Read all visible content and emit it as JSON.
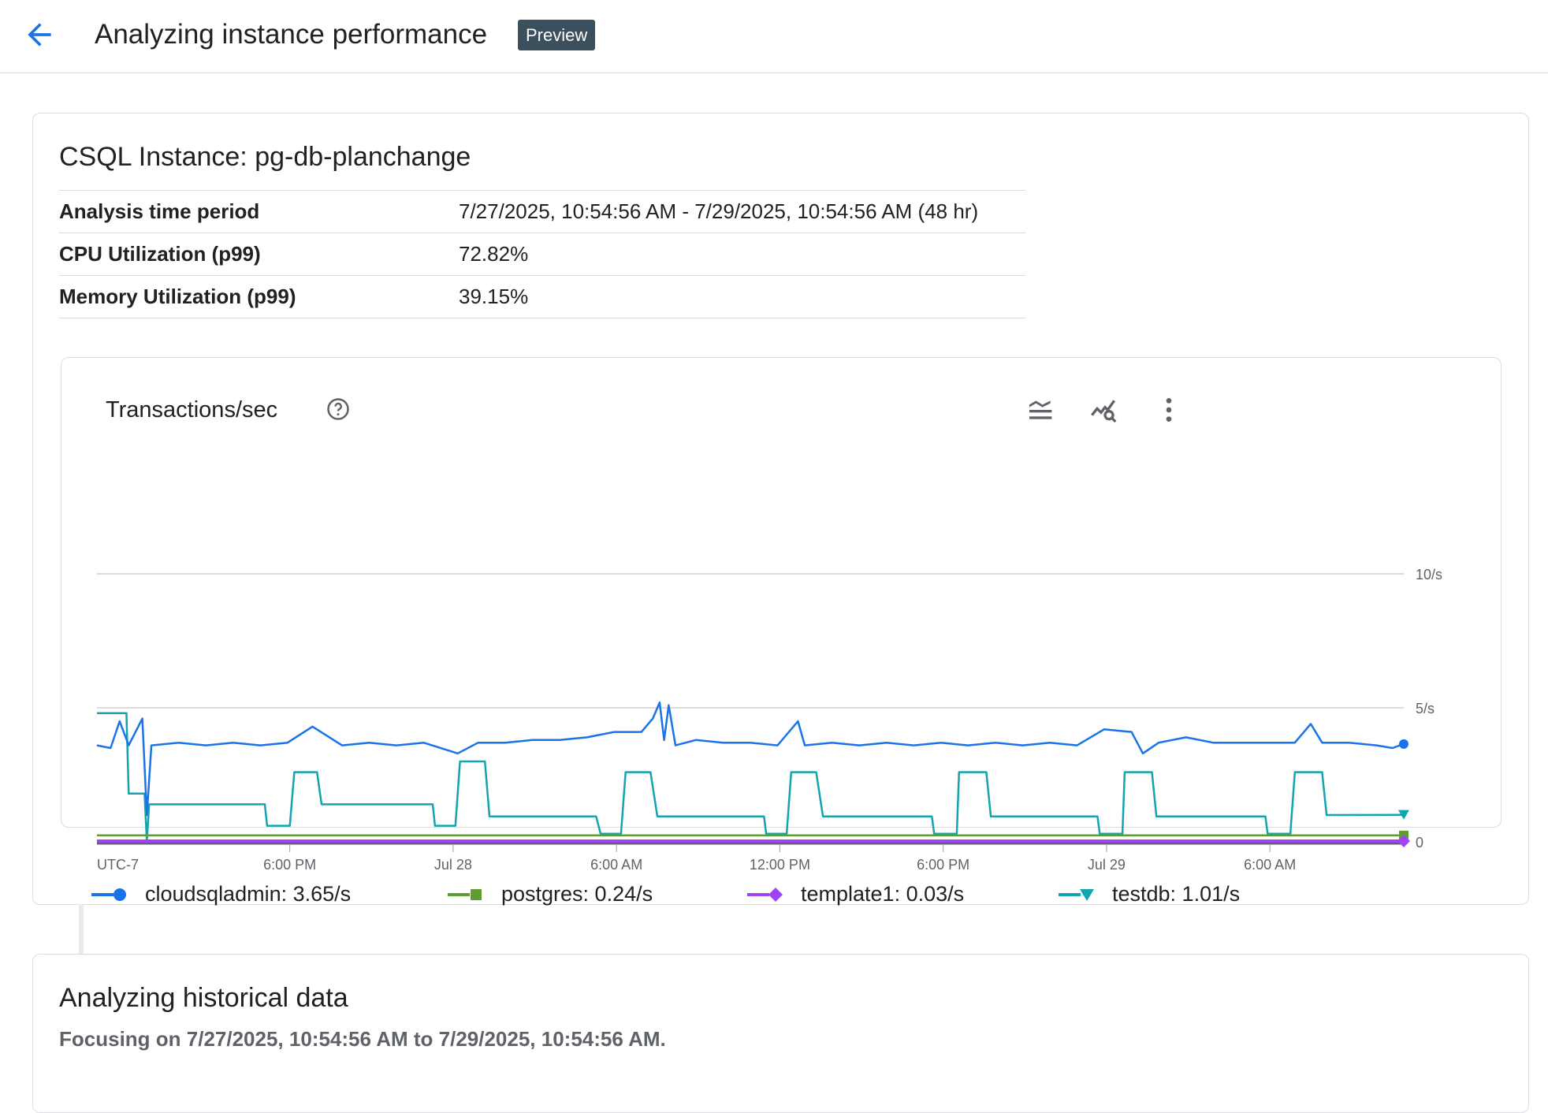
{
  "header": {
    "title": "Analyzing instance performance",
    "badge": "Preview",
    "back_icon": "arrow-back-icon"
  },
  "instance": {
    "title": "CSQL Instance: pg-db-planchange",
    "rows": [
      {
        "label": "Analysis time period",
        "value": "7/27/2025, 10:54:56 AM - 7/29/2025, 10:54:56 AM (48 hr)"
      },
      {
        "label": "CPU Utilization (p99)",
        "value": "72.82%"
      },
      {
        "label": "Memory Utilization (p99)",
        "value": "39.15%"
      }
    ]
  },
  "chart_card": {
    "title": "Transactions/sec",
    "icons": [
      "help-icon",
      "legend-toggle-icon",
      "explore-chart-icon",
      "more-vert-icon"
    ]
  },
  "chart_data": {
    "type": "line",
    "title": "Transactions/sec",
    "x_range": [
      "2025-07-27T10:55",
      "2025-07-29T10:55"
    ],
    "ylim": [
      0,
      10
    ],
    "y_ticks": [
      {
        "v": 10,
        "label": "10/s"
      },
      {
        "v": 5,
        "label": "5/s"
      },
      {
        "v": 0,
        "label": "0"
      }
    ],
    "x_ticks": [
      {
        "t": "2025-07-27T10:55",
        "label": "UTC-7"
      },
      {
        "t": "2025-07-27T18:00",
        "label": "6:00 PM"
      },
      {
        "t": "2025-07-28T00:00",
        "label": "Jul 28"
      },
      {
        "t": "2025-07-28T06:00",
        "label": "6:00 AM"
      },
      {
        "t": "2025-07-28T12:00",
        "label": "12:00 PM"
      },
      {
        "t": "2025-07-28T18:00",
        "label": "6:00 PM"
      },
      {
        "t": "2025-07-29T00:00",
        "label": "Jul 29"
      },
      {
        "t": "2025-07-29T06:00",
        "label": "6:00 AM"
      }
    ],
    "grid": true,
    "legend_placement": "bottom",
    "series": [
      {
        "name": "cloudsqladmin",
        "legend": "cloudsqladmin: 3.65/s",
        "color": "#1a73e8",
        "marker": "circle",
        "points": [
          [
            "2025-07-27T10:55",
            3.6
          ],
          [
            "2025-07-27T11:25",
            3.5
          ],
          [
            "2025-07-27T11:45",
            4.5
          ],
          [
            "2025-07-27T12:05",
            3.6
          ],
          [
            "2025-07-27T12:35",
            4.6
          ],
          [
            "2025-07-27T12:45",
            1.0
          ],
          [
            "2025-07-27T12:55",
            3.6
          ],
          [
            "2025-07-27T13:55",
            3.7
          ],
          [
            "2025-07-27T14:55",
            3.6
          ],
          [
            "2025-07-27T15:55",
            3.7
          ],
          [
            "2025-07-27T16:55",
            3.6
          ],
          [
            "2025-07-27T17:55",
            3.7
          ],
          [
            "2025-07-27T18:50",
            4.3
          ],
          [
            "2025-07-27T19:55",
            3.6
          ],
          [
            "2025-07-27T20:55",
            3.7
          ],
          [
            "2025-07-27T21:55",
            3.6
          ],
          [
            "2025-07-27T22:55",
            3.7
          ],
          [
            "2025-07-28T00:10",
            3.3
          ],
          [
            "2025-07-28T00:55",
            3.7
          ],
          [
            "2025-07-28T01:55",
            3.7
          ],
          [
            "2025-07-28T02:55",
            3.8
          ],
          [
            "2025-07-28T03:55",
            3.8
          ],
          [
            "2025-07-28T04:55",
            3.9
          ],
          [
            "2025-07-28T05:55",
            4.1
          ],
          [
            "2025-07-28T06:55",
            4.1
          ],
          [
            "2025-07-28T07:20",
            4.6
          ],
          [
            "2025-07-28T07:35",
            5.2
          ],
          [
            "2025-07-28T07:45",
            3.8
          ],
          [
            "2025-07-28T07:55",
            5.1
          ],
          [
            "2025-07-28T08:10",
            3.6
          ],
          [
            "2025-07-28T08:55",
            3.8
          ],
          [
            "2025-07-28T09:55",
            3.7
          ],
          [
            "2025-07-28T10:55",
            3.7
          ],
          [
            "2025-07-28T11:55",
            3.6
          ],
          [
            "2025-07-28T12:40",
            4.5
          ],
          [
            "2025-07-28T12:55",
            3.6
          ],
          [
            "2025-07-28T13:55",
            3.7
          ],
          [
            "2025-07-28T14:55",
            3.6
          ],
          [
            "2025-07-28T15:55",
            3.7
          ],
          [
            "2025-07-28T16:55",
            3.6
          ],
          [
            "2025-07-28T17:55",
            3.7
          ],
          [
            "2025-07-28T18:55",
            3.6
          ],
          [
            "2025-07-28T19:55",
            3.7
          ],
          [
            "2025-07-28T20:55",
            3.6
          ],
          [
            "2025-07-28T21:55",
            3.7
          ],
          [
            "2025-07-28T22:55",
            3.6
          ],
          [
            "2025-07-28T23:55",
            4.2
          ],
          [
            "2025-07-29T00:55",
            4.1
          ],
          [
            "2025-07-29T01:20",
            3.3
          ],
          [
            "2025-07-29T01:55",
            3.7
          ],
          [
            "2025-07-29T02:55",
            3.9
          ],
          [
            "2025-07-29T03:55",
            3.7
          ],
          [
            "2025-07-29T04:55",
            3.7
          ],
          [
            "2025-07-29T05:55",
            3.7
          ],
          [
            "2025-07-29T06:55",
            3.7
          ],
          [
            "2025-07-29T07:30",
            4.4
          ],
          [
            "2025-07-29T07:55",
            3.7
          ],
          [
            "2025-07-29T08:55",
            3.7
          ],
          [
            "2025-07-29T09:55",
            3.6
          ],
          [
            "2025-07-29T10:30",
            3.5
          ],
          [
            "2025-07-29T10:55",
            3.65
          ]
        ]
      },
      {
        "name": "postgres",
        "legend": "postgres: 0.24/s",
        "color": "#5f9e2e",
        "marker": "square",
        "points": [
          [
            "2025-07-27T10:55",
            0.24
          ],
          [
            "2025-07-29T10:55",
            0.24
          ]
        ]
      },
      {
        "name": "template1",
        "legend": "template1: 0.03/s",
        "color": "#a142f4",
        "marker": "diamond",
        "points": [
          [
            "2025-07-27T10:55",
            0.03
          ],
          [
            "2025-07-29T10:55",
            0.03
          ]
        ]
      },
      {
        "name": "testdb",
        "legend": "testdb: 1.01/s",
        "color": "#12a4af",
        "marker": "triangle",
        "points": [
          [
            "2025-07-27T10:55",
            4.8
          ],
          [
            "2025-07-27T12:00",
            4.8
          ],
          [
            "2025-07-27T12:05",
            1.8
          ],
          [
            "2025-07-27T12:40",
            1.8
          ],
          [
            "2025-07-27T12:45",
            0
          ],
          [
            "2025-07-27T12:50",
            1.4
          ],
          [
            "2025-07-27T17:05",
            1.4
          ],
          [
            "2025-07-27T17:10",
            0.6
          ],
          [
            "2025-07-27T18:00",
            0.6
          ],
          [
            "2025-07-27T18:10",
            2.6
          ],
          [
            "2025-07-27T19:00",
            2.6
          ],
          [
            "2025-07-27T19:10",
            1.4
          ],
          [
            "2025-07-27T23:15",
            1.4
          ],
          [
            "2025-07-27T23:20",
            0.6
          ],
          [
            "2025-07-28T00:05",
            0.6
          ],
          [
            "2025-07-28T00:15",
            3.0
          ],
          [
            "2025-07-28T01:10",
            3.0
          ],
          [
            "2025-07-28T01:20",
            0.95
          ],
          [
            "2025-07-28T05:15",
            0.95
          ],
          [
            "2025-07-28T05:25",
            0.3
          ],
          [
            "2025-07-28T06:10",
            0.3
          ],
          [
            "2025-07-28T06:20",
            2.6
          ],
          [
            "2025-07-28T07:15",
            2.6
          ],
          [
            "2025-07-28T07:30",
            0.95
          ],
          [
            "2025-07-28T11:25",
            0.95
          ],
          [
            "2025-07-28T11:30",
            0.3
          ],
          [
            "2025-07-28T12:15",
            0.3
          ],
          [
            "2025-07-28T12:25",
            2.6
          ],
          [
            "2025-07-28T13:20",
            2.6
          ],
          [
            "2025-07-28T13:35",
            0.95
          ],
          [
            "2025-07-28T17:35",
            0.95
          ],
          [
            "2025-07-28T17:40",
            0.3
          ],
          [
            "2025-07-28T18:30",
            0.3
          ],
          [
            "2025-07-28T18:35",
            2.6
          ],
          [
            "2025-07-28T19:35",
            2.6
          ],
          [
            "2025-07-28T19:45",
            0.95
          ],
          [
            "2025-07-28T23:40",
            0.95
          ],
          [
            "2025-07-28T23:45",
            0.3
          ],
          [
            "2025-07-29T00:35",
            0.3
          ],
          [
            "2025-07-29T00:40",
            2.6
          ],
          [
            "2025-07-29T01:40",
            2.6
          ],
          [
            "2025-07-29T01:50",
            0.95
          ],
          [
            "2025-07-29T05:50",
            0.95
          ],
          [
            "2025-07-29T05:55",
            0.3
          ],
          [
            "2025-07-29T06:45",
            0.3
          ],
          [
            "2025-07-29T06:55",
            2.6
          ],
          [
            "2025-07-29T07:55",
            2.6
          ],
          [
            "2025-07-29T08:05",
            1.0
          ],
          [
            "2025-07-29T10:55",
            1.01
          ]
        ]
      }
    ]
  },
  "historical": {
    "title": "Analyzing historical data",
    "subtitle": "Focusing on 7/27/2025, 10:54:56 AM to 7/29/2025, 10:54:56 AM."
  }
}
